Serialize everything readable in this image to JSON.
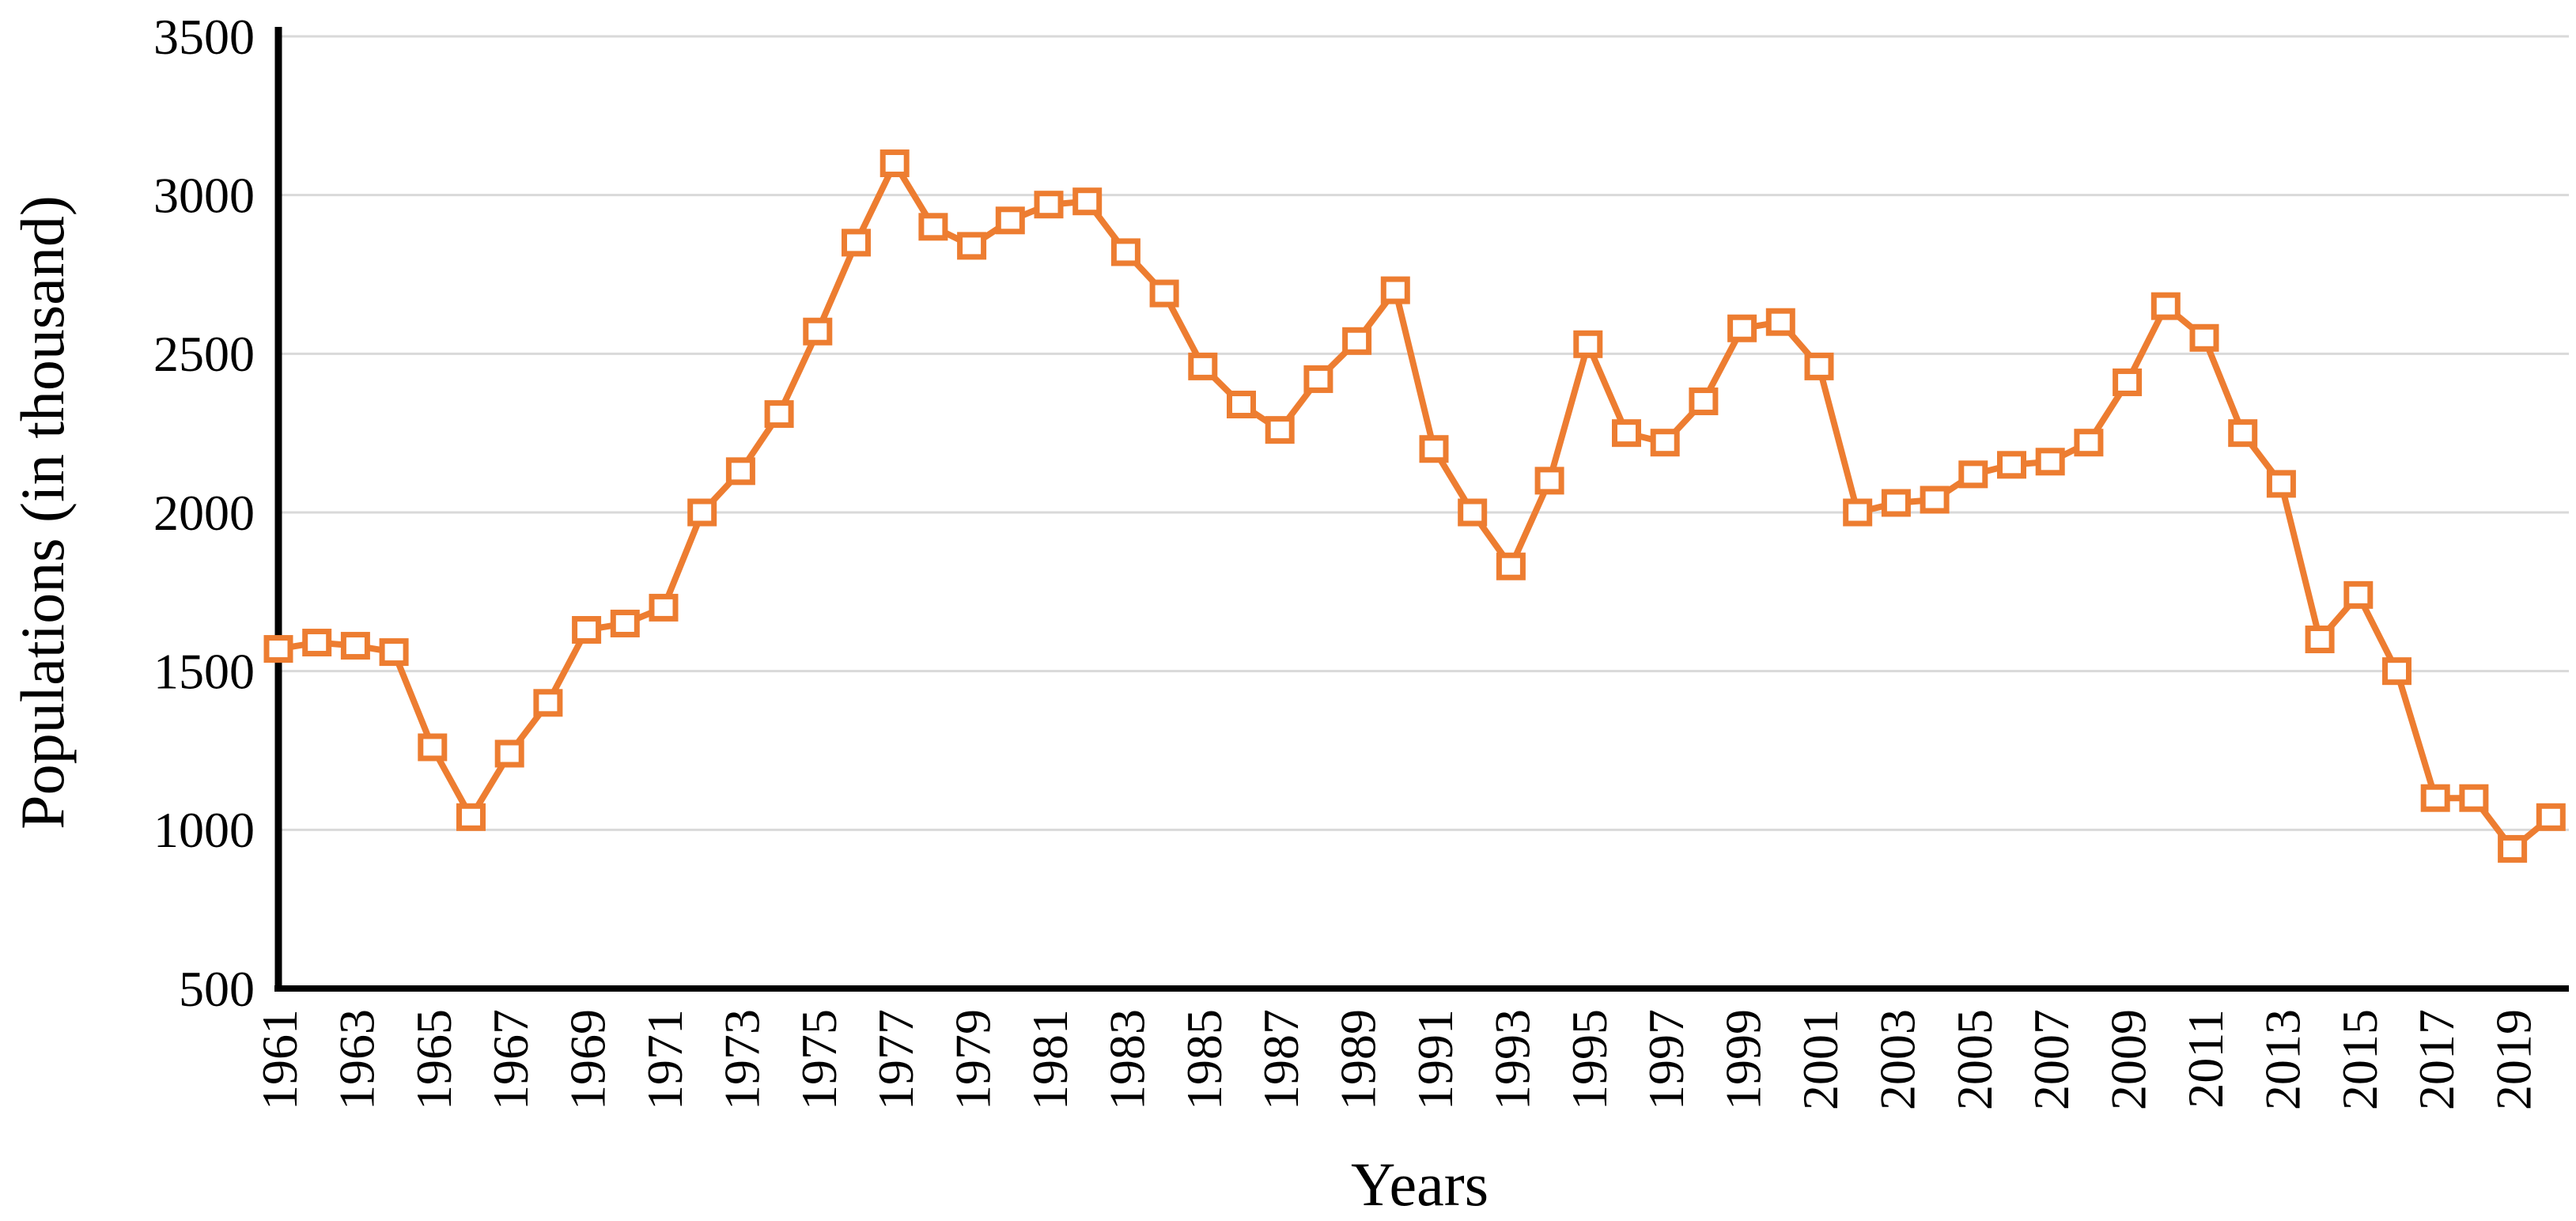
{
  "page": {
    "background_color": "#ffffff"
  },
  "chart_data": {
    "type": "line",
    "title": "",
    "xlabel": "Years",
    "ylabel": "Populations (in thousand)",
    "legend": "none",
    "grid": "horizontal",
    "series_color": "#ED7D31",
    "marker_style": "open-square",
    "marker_fill": "#ffffff",
    "gridline_color": "#D9D9D9",
    "axis_color": "#000000",
    "text_color": "#000000",
    "ylim": [
      500,
      3500
    ],
    "y_ticks": [
      500,
      1000,
      1500,
      2000,
      2500,
      3000,
      3500
    ],
    "x_tick_years": [
      1961,
      1963,
      1965,
      1967,
      1969,
      1971,
      1973,
      1975,
      1977,
      1979,
      1981,
      1983,
      1985,
      1987,
      1989,
      1991,
      1993,
      1995,
      1997,
      1999,
      2001,
      2003,
      2005,
      2007,
      2009,
      2011,
      2013,
      2015,
      2017,
      2019
    ],
    "x": [
      1961,
      1962,
      1963,
      1964,
      1965,
      1966,
      1967,
      1968,
      1969,
      1970,
      1971,
      1972,
      1973,
      1974,
      1975,
      1976,
      1977,
      1978,
      1979,
      1980,
      1981,
      1982,
      1983,
      1984,
      1985,
      1986,
      1987,
      1988,
      1989,
      1990,
      1991,
      1992,
      1993,
      1994,
      1995,
      1996,
      1997,
      1998,
      1999,
      2000,
      2001,
      2002,
      2003,
      2004,
      2005,
      2006,
      2007,
      2008,
      2009,
      2010,
      2011,
      2012,
      2013,
      2014,
      2015,
      2016,
      2017,
      2018,
      2019,
      2020
    ],
    "series": [
      {
        "name": "Populations (in thousand)",
        "values": [
          1570,
          1590,
          1580,
          1560,
          1260,
          1040,
          1240,
          1400,
          1630,
          1650,
          1700,
          2000,
          2130,
          2310,
          2570,
          2850,
          3100,
          2900,
          2840,
          2920,
          2970,
          2980,
          2820,
          2690,
          2460,
          2340,
          2260,
          2420,
          2540,
          2700,
          2200,
          2000,
          1830,
          2100,
          2530,
          2250,
          2220,
          2350,
          2580,
          2600,
          2460,
          2000,
          2030,
          2040,
          2120,
          2150,
          2160,
          2220,
          2410,
          2650,
          2550,
          2250,
          2090,
          1600,
          1740,
          1500,
          1100,
          1100,
          940,
          1040
        ]
      }
    ]
  }
}
